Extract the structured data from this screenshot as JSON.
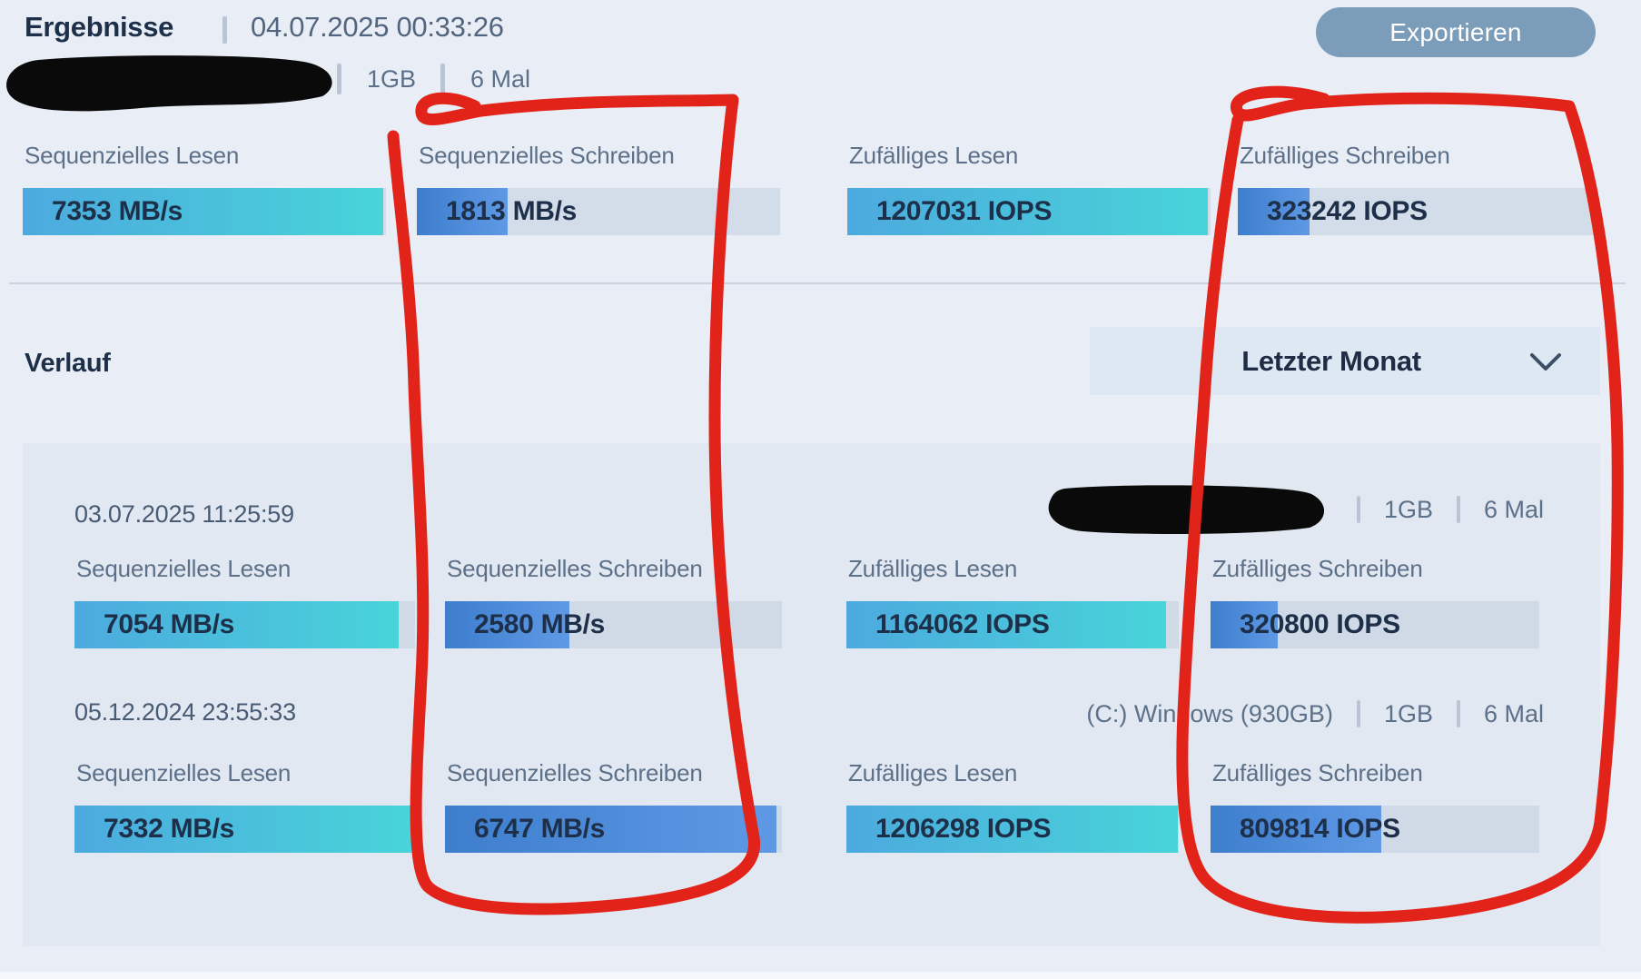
{
  "results": {
    "title": "Ergebnisse",
    "timestamp": "04.07.2025 00:33:26",
    "export_label": "Exportieren",
    "meta": {
      "size": "1GB",
      "runs": "6 Mal",
      "drive_redacted": true
    },
    "metrics": [
      {
        "label": "Sequenzielles Lesen",
        "display": "7353 MB/s",
        "value": 7353,
        "unit": "MB/s",
        "kind": "read",
        "fill_pct": 99.3
      },
      {
        "label": "Sequenzielles Schreiben",
        "display": "1813 MB/s",
        "value": 1813,
        "unit": "MB/s",
        "kind": "write",
        "fill_pct": 25
      },
      {
        "label": "Zufälliges Lesen",
        "display": "1207031 IOPS",
        "value": 1207031,
        "unit": "IOPS",
        "kind": "read",
        "fill_pct": 99.2
      },
      {
        "label": "Zufälliges Schreiben",
        "display": "323242 IOPS",
        "value": 323242,
        "unit": "IOPS",
        "kind": "write",
        "fill_pct": 20
      }
    ]
  },
  "history": {
    "title": "Verlauf",
    "range_filter": "Letzter Monat",
    "entries": [
      {
        "date": "03.07.2025 11:25:59",
        "drive": "",
        "drive_redacted": true,
        "meta": {
          "size": "1GB",
          "runs": "6 Mal"
        },
        "metrics": [
          {
            "label": "Sequenzielles Lesen",
            "display": "7054 MB/s",
            "value": 7054,
            "unit": "MB/s",
            "kind": "read",
            "fill_pct": 95.2
          },
          {
            "label": "Sequenzielles Schreiben",
            "display": "2580 MB/s",
            "value": 2580,
            "unit": "MB/s",
            "kind": "write",
            "fill_pct": 37
          },
          {
            "label": "Zufälliges Lesen",
            "display": "1164062 IOPS",
            "value": 1164062,
            "unit": "IOPS",
            "kind": "read",
            "fill_pct": 96.3
          },
          {
            "label": "Zufälliges Schreiben",
            "display": "320800 IOPS",
            "value": 320800,
            "unit": "IOPS",
            "kind": "write",
            "fill_pct": 20.5
          }
        ]
      },
      {
        "date": "05.12.2024 23:55:33",
        "drive": "(C:) Windows (930GB)",
        "drive_redacted": false,
        "meta": {
          "size": "1GB",
          "runs": "6 Mal"
        },
        "metrics": [
          {
            "label": "Sequenzielles Lesen",
            "display": "7332 MB/s",
            "value": 7332,
            "unit": "MB/s",
            "kind": "read",
            "fill_pct": 99
          },
          {
            "label": "Sequenzielles Schreiben",
            "display": "6747 MB/s",
            "value": 6747,
            "unit": "MB/s",
            "kind": "write",
            "fill_pct": 98.4
          },
          {
            "label": "Zufälliges Lesen",
            "display": "1206298 IOPS",
            "value": 1206298,
            "unit": "IOPS",
            "kind": "read",
            "fill_pct": 99.7
          },
          {
            "label": "Zufälliges Schreiben",
            "display": "809814 IOPS",
            "value": 809814,
            "unit": "IOPS",
            "kind": "write",
            "fill_pct": 52
          }
        ]
      }
    ]
  },
  "annotations": {
    "red_loop_color": "#e2231a",
    "redaction_color": "#0a0a0a",
    "highlighted_columns": [
      "Sequenzielles Schreiben",
      "Zufälliges Schreiben"
    ]
  },
  "colors": {
    "page_bg": "#e9eef6",
    "card_bg": "#e2e8f1",
    "bar_track": "#d3dce9",
    "read_bar_start": "#4caade",
    "read_bar_end": "#48d4d9",
    "write_bar_start": "#3d7ecd",
    "write_bar_end": "#5f99e5",
    "export_button": "#7b9db9",
    "dropdown_bg": "#dde8f3"
  }
}
